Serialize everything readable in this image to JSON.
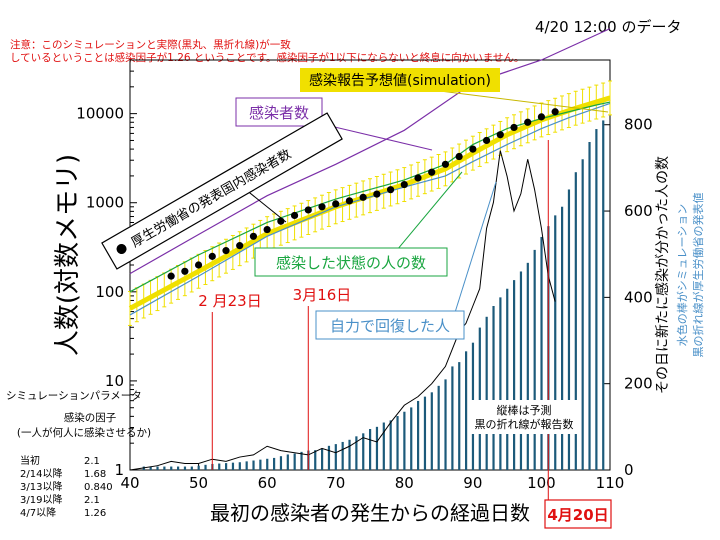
{
  "header": {
    "date_label": "4/20 12:00 のデータ",
    "note_line1": "注意：このシミュレーションと実際(黒丸、黒折れ線)が一致",
    "note_line2": "しているということは感染因子が1.26 ということです。感染因子が1以下にならないと終息に向かいません。"
  },
  "labels": {
    "simulation_box": "感染報告予想値(simulation)",
    "infected_box": "感染者数",
    "mhlw_box": "厚生労働省の発表国内感染者数",
    "infected_state_box": "感染した状態の人の数",
    "recovered_box": "自力で回復した人",
    "date_feb23": "2 月23日",
    "date_mar16": "3月16日",
    "date_apr20": "4月20日",
    "bar_note_line1": "縦棒は予測",
    "bar_note_line2": "黒の折れ線が報告数"
  },
  "axes": {
    "xlabel": "最初の感染者の発生からの経過日数",
    "ylabel_left": "人数(対数メモリ)",
    "ylabel_right_main": "その日に新たに感染が分かった人の数",
    "ylabel_right_sub1": "水色の棒がシミュレーション",
    "ylabel_right_sub2": "黒の折れ線が厚生労働省の発表値"
  },
  "params": {
    "title": "シミュレーションパラメータ",
    "subtitle": "感染の因子",
    "subtitle2": "(一人が何人に感染させるか)",
    "rows": [
      {
        "label": "当初",
        "value": "2.1"
      },
      {
        "label": "2/14以降",
        "value": "1.68"
      },
      {
        "label": "3/13以降",
        "value": "0.840"
      },
      {
        "label": "3/19以降",
        "value": "2.1"
      },
      {
        "label": "4/7以降",
        "value": "1.26"
      }
    ]
  },
  "colors": {
    "infected": "#7b2fa8",
    "infected_state": "#1aa640",
    "recovered": "#4a90c8",
    "simulation": "#f0e000",
    "bars": "#1c5a7a",
    "reported": "#000000",
    "markers": "#000000",
    "date_markers": "#e01010",
    "note": "#e01010"
  },
  "chart_data": {
    "type": "line",
    "xlim": [
      40,
      110
    ],
    "xticks": [
      40,
      50,
      60,
      70,
      80,
      90,
      100,
      110
    ],
    "ylim_left": [
      1,
      40000
    ],
    "yscale_left": "log",
    "yticks_left": [
      1,
      10,
      100,
      1000,
      10000
    ],
    "ytick_labels_left": [
      "1",
      "10",
      "100",
      "1000",
      "10000"
    ],
    "ylim_right": [
      0,
      950
    ],
    "yticks_right": [
      0,
      200,
      400,
      600,
      800
    ],
    "date_markers": [
      {
        "day": 52,
        "label": "2 月23日"
      },
      {
        "day": 66,
        "label": "3月16日"
      },
      {
        "day": 101,
        "label": "4月20日"
      }
    ],
    "series": [
      {
        "name": "感染者数",
        "axis": "left",
        "kind": "line",
        "x": [
          40,
          50,
          60,
          70,
          80,
          90,
          100,
          110
        ],
        "y": [
          160,
          440,
          1200,
          2700,
          6500,
          22000,
          40000,
          90000
        ]
      },
      {
        "name": "感染した状態の人の数",
        "axis": "left",
        "kind": "line",
        "x": [
          40,
          50,
          60,
          70,
          80,
          86,
          90,
          95,
          100,
          104,
          108,
          110
        ],
        "y": [
          100,
          260,
          600,
          1100,
          1800,
          2700,
          4500,
          6800,
          8800,
          10500,
          12500,
          13500
        ]
      },
      {
        "name": "自力で回復した人",
        "axis": "left",
        "kind": "line",
        "x": [
          40,
          50,
          60,
          70,
          80,
          86,
          90,
          95,
          100,
          104,
          108,
          110
        ],
        "y": [
          55,
          150,
          420,
          900,
          1500,
          2000,
          2900,
          4500,
          6800,
          9000,
          11500,
          13000
        ]
      },
      {
        "name": "感染報告予想値(simulation)",
        "axis": "left",
        "kind": "band",
        "x": [
          40,
          50,
          60,
          70,
          80,
          86,
          90,
          95,
          100,
          105,
          110
        ],
        "y": [
          65,
          170,
          450,
          900,
          1600,
          2400,
          3600,
          5800,
          8500,
          11500,
          15000
        ]
      },
      {
        "name": "厚生労働省の発表国内感染者数",
        "axis": "left",
        "kind": "markers",
        "x": [
          46,
          48,
          50,
          52,
          54,
          56,
          58,
          60,
          62,
          64,
          66,
          68,
          70,
          72,
          74,
          76,
          78,
          80,
          82,
          84,
          86,
          88,
          90,
          92,
          94,
          96,
          98,
          100,
          102
        ],
        "y": [
          150,
          170,
          200,
          250,
          290,
          330,
          420,
          500,
          620,
          720,
          830,
          900,
          970,
          1050,
          1150,
          1250,
          1400,
          1600,
          1900,
          2200,
          2700,
          3300,
          4000,
          5000,
          5800,
          7000,
          8000,
          9200,
          10500
        ]
      },
      {
        "name": "縦棒は予測",
        "axis": "right",
        "kind": "bar",
        "x": [
          42,
          43,
          44,
          45,
          46,
          47,
          48,
          49,
          50,
          51,
          52,
          53,
          54,
          55,
          56,
          57,
          58,
          59,
          60,
          61,
          62,
          63,
          64,
          65,
          66,
          67,
          68,
          69,
          70,
          71,
          72,
          73,
          74,
          75,
          76,
          77,
          78,
          79,
          80,
          81,
          82,
          83,
          84,
          85,
          86,
          87,
          88,
          89,
          90,
          91,
          92,
          93,
          94,
          95,
          96,
          97,
          98,
          99,
          100,
          101,
          102,
          103,
          104,
          105,
          106,
          107,
          108,
          109
        ],
        "y": [
          8,
          8,
          8,
          8,
          8,
          8,
          8,
          8,
          10,
          12,
          14,
          15,
          16,
          17,
          18,
          20,
          22,
          24,
          26,
          28,
          32,
          36,
          38,
          42,
          45,
          46,
          50,
          56,
          60,
          65,
          70,
          78,
          85,
          95,
          100,
          110,
          115,
          125,
          135,
          145,
          160,
          170,
          180,
          195,
          210,
          240,
          250,
          275,
          295,
          330,
          355,
          380,
          400,
          420,
          440,
          460,
          480,
          510,
          540,
          565,
          590,
          610,
          650,
          690,
          720,
          760,
          790,
          810
        ]
      },
      {
        "name": "黒の折れ線が報告数",
        "axis": "right",
        "kind": "line",
        "x": [
          40,
          42,
          44,
          46,
          48,
          50,
          52,
          54,
          56,
          58,
          60,
          62,
          64,
          66,
          68,
          70,
          72,
          74,
          76,
          78,
          80,
          82,
          84,
          86,
          87,
          88,
          89,
          90,
          91,
          92,
          93,
          94,
          95,
          96,
          97,
          98,
          99,
          100,
          101,
          102
        ],
        "y": [
          0,
          5,
          10,
          20,
          15,
          15,
          25,
          20,
          30,
          35,
          55,
          45,
          40,
          35,
          50,
          40,
          55,
          75,
          65,
          110,
          150,
          170,
          200,
          240,
          280,
          320,
          340,
          380,
          420,
          560,
          620,
          740,
          680,
          600,
          640,
          720,
          650,
          560,
          450,
          390
        ]
      }
    ]
  }
}
